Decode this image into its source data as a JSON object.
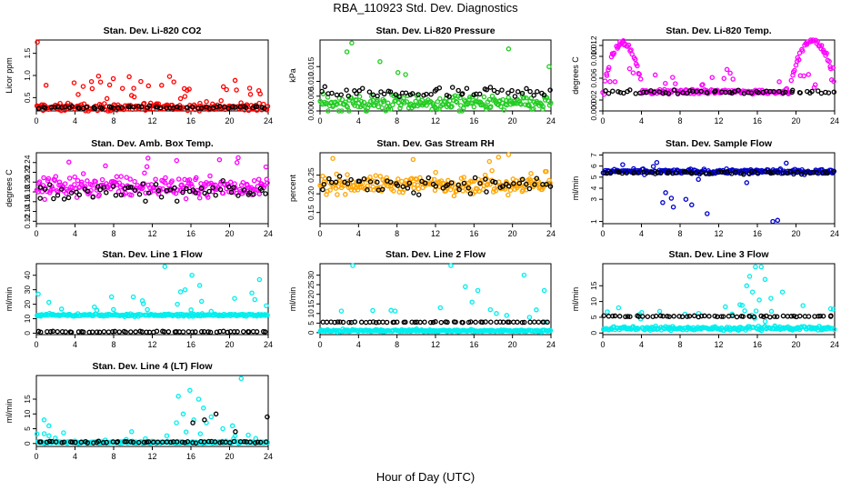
{
  "page": {
    "title": "RBA_110923  Std. Dev. Diagnostics",
    "xlabel": "Hour of Day (UTC)"
  },
  "colors": {
    "red": "#ff0000",
    "green": "#22cc22",
    "magenta": "#ff00ff",
    "orange": "#ffa500",
    "blue": "#0000cc",
    "cyan": "#00eeee",
    "black": "#000000"
  },
  "chart_data": [
    {
      "type": "scatter",
      "title": "Stan. Dev. Li-820 CO2",
      "ylabel": "Licor ppm",
      "xlim": [
        0,
        24
      ],
      "ylim": [
        0.2,
        1.8
      ],
      "xticks": [
        0,
        4,
        8,
        12,
        16,
        20,
        24
      ],
      "yticks": [
        0.5,
        1.0,
        1.5
      ],
      "yticklabels": [
        "0.5",
        "1.0",
        "1.5"
      ],
      "color_name": "red",
      "base": 0.28,
      "spread": 0.12,
      "outlier_rate": 0.15,
      "outlier_max": 1.0,
      "black_base": 0.28,
      "black_spread": 0.05,
      "extra": [
        [
          0.1,
          1.75
        ]
      ]
    },
    {
      "type": "scatter",
      "title": "Stan. Dev. Li-820 Pressure",
      "ylabel": "kPa",
      "xlim": [
        0,
        24
      ],
      "ylim": [
        0,
        0.024
      ],
      "xticks": [
        0,
        4,
        8,
        12,
        16,
        20,
        24
      ],
      "yticks": [
        0,
        0.005,
        0.01,
        0.015
      ],
      "yticklabels": [
        "0.000",
        "0.005",
        "0.010",
        "0.015"
      ],
      "color_name": "green",
      "base": 0.0025,
      "spread": 0.004,
      "outlier_rate": 0.02,
      "outlier_max": 0.022,
      "black_base": 0.006,
      "black_spread": 0.003,
      "extra": [
        [
          3.3,
          0.023
        ],
        [
          2.8,
          0.02
        ],
        [
          8.1,
          0.013
        ],
        [
          19.6,
          0.021
        ],
        [
          23.8,
          0.015
        ]
      ]
    },
    {
      "type": "scatter",
      "title": "Stan. Dev. Li-820 Temp.",
      "ylabel": "degrees C",
      "xlim": [
        0,
        24
      ],
      "ylim": [
        0,
        0.013
      ],
      "xticks": [
        0,
        4,
        8,
        12,
        16,
        20,
        24
      ],
      "yticks": [
        0,
        0.002,
        0.006,
        0.01,
        0.012
      ],
      "yticklabels": [
        "0.000",
        "0.002",
        "0.006",
        "0.010",
        "0.012"
      ],
      "color_name": "magenta",
      "base": 0.0035,
      "spread": 0.0006,
      "outlier_rate": 0.1,
      "outlier_max": 0.008,
      "black_base": 0.0035,
      "black_spread": 0.0005,
      "extra": [],
      "humps": [
        [
          0.2,
          4.0,
          0.0125
        ],
        [
          19.5,
          24,
          0.013
        ]
      ]
    },
    {
      "type": "scatter",
      "title": "Stan. Dev. Amb. Box Temp.",
      "ylabel": "degrees C",
      "xlim": [
        0,
        24
      ],
      "ylim": [
        0.115,
        0.26
      ],
      "xticks": [
        0,
        4,
        8,
        12,
        16,
        20,
        24
      ],
      "yticks": [
        0.12,
        0.14,
        0.16,
        0.18,
        0.2,
        0.22,
        0.24
      ],
      "yticklabels": [
        "0.12",
        "0.14",
        "0.16",
        "0.18",
        "0.20",
        "0.22",
        "0.24"
      ],
      "color_name": "magenta",
      "base": 0.19,
      "spread": 0.03,
      "outlier_rate": 0.05,
      "outlier_max": 0.25,
      "black_base": 0.18,
      "black_spread": 0.025,
      "extra": []
    },
    {
      "type": "scatter",
      "title": "Stan. Dev. Gas Stream RH",
      "ylabel": "percent",
      "xlim": [
        0,
        24
      ],
      "ylim": [
        0.12,
        0.31
      ],
      "xticks": [
        0,
        4,
        8,
        12,
        16,
        20,
        24
      ],
      "yticks": [
        0.15,
        0.2,
        0.25
      ],
      "yticklabels": [
        "0.15",
        "0.20",
        "0.25"
      ],
      "color_name": "orange",
      "base": 0.225,
      "spread": 0.035,
      "outlier_rate": 0.04,
      "outlier_max": 0.3,
      "black_base": 0.225,
      "black_spread": 0.03,
      "extra": [
        [
          19.6,
          0.305
        ]
      ]
    },
    {
      "type": "scatter",
      "title": "Stan. Dev. Sample Flow",
      "ylabel": "ml/min",
      "xlim": [
        0,
        24
      ],
      "ylim": [
        0.8,
        7.2
      ],
      "xticks": [
        0,
        4,
        8,
        12,
        16,
        20,
        24
      ],
      "yticks": [
        1,
        3,
        4,
        5,
        6,
        7
      ],
      "yticklabels": [
        "1",
        "3",
        "4",
        "5",
        "6",
        "7"
      ],
      "color_name": "blue",
      "base": 5.5,
      "spread": 0.3,
      "outlier_rate": 0.03,
      "outlier_max": 6.5,
      "black_base": 5.4,
      "black_spread": 0.2,
      "extra": [
        [
          6.5,
          3.6
        ],
        [
          6.2,
          2.7
        ],
        [
          7.3,
          2.3
        ],
        [
          7.1,
          3.1
        ],
        [
          8.6,
          3.0
        ],
        [
          9.2,
          2.5
        ],
        [
          10.8,
          1.7
        ],
        [
          17.6,
          1.0
        ],
        [
          18.1,
          1.1
        ],
        [
          14.9,
          4.5
        ],
        [
          9.9,
          4.8
        ]
      ]
    },
    {
      "type": "scatter",
      "title": "Stan. Dev. Line 1 Flow",
      "ylabel": "ml/min",
      "xlim": [
        0,
        24
      ],
      "ylim": [
        -1,
        48
      ],
      "xticks": [
        0,
        4,
        8,
        12,
        16,
        20,
        24
      ],
      "yticks": [
        0,
        10,
        20,
        30,
        40
      ],
      "yticklabels": [
        "0",
        "10",
        "20",
        "30",
        "40"
      ],
      "color_name": "cyan",
      "base": 12.5,
      "spread": 1.2,
      "outlier_rate": 0.06,
      "outlier_max": 30,
      "black_base": 1.0,
      "black_spread": 0.6,
      "extra": [
        [
          13.3,
          46
        ],
        [
          0.2,
          27
        ],
        [
          23.8,
          19
        ],
        [
          23.1,
          37
        ],
        [
          16.1,
          40
        ],
        [
          15.4,
          30
        ],
        [
          16.9,
          33
        ],
        [
          14.6,
          20
        ],
        [
          17.1,
          22
        ]
      ]
    },
    {
      "type": "scatter",
      "title": "Stan. Dev. Line 2 Flow",
      "ylabel": "ml/min",
      "xlim": [
        0,
        24
      ],
      "ylim": [
        -1,
        36
      ],
      "xticks": [
        0,
        4,
        8,
        12,
        16,
        20,
        24
      ],
      "yticks": [
        0,
        5,
        10,
        15,
        20,
        25,
        30
      ],
      "yticklabels": [
        "0",
        "5",
        "10",
        "15",
        "20",
        "25",
        "30"
      ],
      "color_name": "cyan",
      "base": 1.0,
      "spread": 0.8,
      "outlier_rate": 0.05,
      "outlier_max": 14,
      "black_base": 5.5,
      "black_spread": 0.3,
      "extra": [
        [
          3.4,
          35
        ],
        [
          13.6,
          35
        ],
        [
          15.1,
          24
        ],
        [
          16.4,
          22
        ],
        [
          15.8,
          16
        ],
        [
          17.7,
          12
        ],
        [
          21.2,
          30
        ],
        [
          23.3,
          22
        ],
        [
          19.4,
          9
        ],
        [
          12.5,
          13
        ]
      ]
    },
    {
      "type": "scatter",
      "title": "Stan. Dev. Line 3 Flow",
      "ylabel": "ml/min",
      "xlim": [
        0,
        24
      ],
      "ylim": [
        -0.5,
        22
      ],
      "xticks": [
        0,
        4,
        8,
        12,
        16,
        20,
        24
      ],
      "yticks": [
        0,
        5,
        10,
        15
      ],
      "yticklabels": [
        "0",
        "5",
        "10",
        "15"
      ],
      "color_name": "cyan",
      "base": 1.5,
      "spread": 0.9,
      "outlier_rate": 0.08,
      "outlier_max": 9,
      "black_base": 5.3,
      "black_spread": 0.3,
      "extra": [
        [
          15.8,
          21
        ],
        [
          16.4,
          21
        ],
        [
          15.2,
          18
        ],
        [
          14.9,
          15
        ],
        [
          16.8,
          17
        ],
        [
          15.5,
          13
        ],
        [
          17.4,
          11
        ],
        [
          16.2,
          10.5
        ],
        [
          14.2,
          9
        ],
        [
          18.6,
          13
        ]
      ]
    },
    {
      "type": "scatter",
      "title": "Stan. Dev. Line 4 (LT) Flow",
      "ylabel": "ml/min",
      "xlim": [
        0,
        24
      ],
      "ylim": [
        -1,
        23
      ],
      "xticks": [
        0,
        4,
        8,
        12,
        16,
        20,
        24
      ],
      "yticks": [
        0,
        5,
        10,
        15
      ],
      "yticklabels": [
        "0",
        "5",
        "10",
        "15"
      ],
      "color_name": "cyan",
      "base": 0.4,
      "spread": 0.5,
      "outlier_rate": 0.04,
      "outlier_max": 4,
      "black_base": 0.5,
      "black_spread": 0.4,
      "extra": [
        [
          21.2,
          22
        ],
        [
          14.7,
          16
        ],
        [
          15.9,
          18
        ],
        [
          16.8,
          15
        ],
        [
          17.3,
          12
        ],
        [
          15.2,
          10
        ],
        [
          14.5,
          7
        ],
        [
          16.3,
          8
        ],
        [
          18.1,
          9
        ],
        [
          20.3,
          6
        ],
        [
          0.8,
          8
        ],
        [
          1.3,
          6
        ],
        [
          17.6,
          7
        ],
        [
          19.3,
          5
        ]
      ],
      "black_extra": [
        [
          18.6,
          10
        ],
        [
          23.9,
          9
        ],
        [
          17.4,
          8
        ],
        [
          16.2,
          7
        ],
        [
          20.6,
          4
        ]
      ]
    }
  ]
}
